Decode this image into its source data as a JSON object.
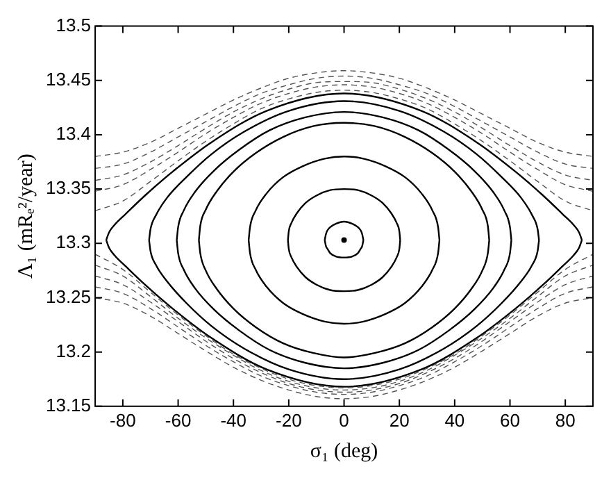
{
  "chart_data": {
    "type": "line",
    "xlabel": "σ₁ (deg)",
    "ylabel": "Λ₁ (mRₑ²/year)",
    "xlim": [
      -90,
      90
    ],
    "xticks": [
      -80,
      -60,
      -40,
      -20,
      0,
      20,
      40,
      60,
      80
    ],
    "ylim": [
      13.15,
      13.5
    ],
    "yticks": [
      13.15,
      13.2,
      13.25,
      13.3,
      13.35,
      13.4,
      13.45,
      13.5
    ],
    "grid": false,
    "legend": false,
    "marker": "none",
    "x": [
      -90,
      -80,
      -70,
      -60,
      -50,
      -40,
      -30,
      -20,
      -10,
      0,
      10,
      20,
      30,
      40,
      50,
      60,
      70,
      80,
      90
    ],
    "series": [
      {
        "color": "#555555",
        "line_style": "dashed",
        "values": [
          13.38,
          13.384,
          13.393,
          13.406,
          13.419,
          13.432,
          13.443,
          13.452,
          13.457,
          13.459,
          13.457,
          13.452,
          13.443,
          13.432,
          13.419,
          13.406,
          13.393,
          13.384,
          13.38
        ]
      },
      {
        "color": "#555555",
        "line_style": "dashed",
        "values": [
          13.369,
          13.373,
          13.384,
          13.398,
          13.412,
          13.426,
          13.438,
          13.446,
          13.452,
          13.454,
          13.452,
          13.446,
          13.438,
          13.426,
          13.412,
          13.398,
          13.384,
          13.373,
          13.369
        ]
      },
      {
        "color": "#555555",
        "line_style": "dashed",
        "values": [
          13.358,
          13.363,
          13.375,
          13.39,
          13.406,
          13.421,
          13.433,
          13.442,
          13.448,
          13.449,
          13.448,
          13.442,
          13.433,
          13.421,
          13.406,
          13.39,
          13.375,
          13.363,
          13.358
        ]
      },
      {
        "color": "#555555",
        "line_style": "dashed",
        "values": [
          13.348,
          13.354,
          13.368,
          13.384,
          13.401,
          13.416,
          13.429,
          13.438,
          13.444,
          13.446,
          13.444,
          13.438,
          13.429,
          13.416,
          13.401,
          13.384,
          13.368,
          13.354,
          13.348
        ]
      },
      {
        "color": "#555555",
        "line_style": "dashed",
        "values": [
          13.33,
          13.339,
          13.357,
          13.376,
          13.394,
          13.41,
          13.424,
          13.433,
          13.439,
          13.441,
          13.439,
          13.433,
          13.424,
          13.41,
          13.394,
          13.376,
          13.357,
          13.339,
          13.33
        ]
      },
      {
        "color": "#555555",
        "line_style": "dashed",
        "values": [
          13.25,
          13.245,
          13.233,
          13.217,
          13.201,
          13.186,
          13.174,
          13.165,
          13.159,
          13.157,
          13.159,
          13.165,
          13.174,
          13.186,
          13.201,
          13.217,
          13.233,
          13.245,
          13.25
        ]
      },
      {
        "color": "#555555",
        "line_style": "dashed",
        "values": [
          13.26,
          13.254,
          13.24,
          13.223,
          13.206,
          13.191,
          13.178,
          13.169,
          13.163,
          13.161,
          13.163,
          13.169,
          13.178,
          13.191,
          13.206,
          13.223,
          13.24,
          13.254,
          13.26
        ]
      },
      {
        "color": "#555555",
        "line_style": "dashed",
        "values": [
          13.27,
          13.262,
          13.246,
          13.228,
          13.21,
          13.194,
          13.181,
          13.171,
          13.165,
          13.163,
          13.165,
          13.171,
          13.181,
          13.194,
          13.21,
          13.228,
          13.246,
          13.262,
          13.27
        ]
      },
      {
        "color": "#555555",
        "line_style": "dashed",
        "values": [
          13.28,
          13.27,
          13.251,
          13.231,
          13.213,
          13.197,
          13.183,
          13.173,
          13.167,
          13.165,
          13.167,
          13.173,
          13.183,
          13.197,
          13.213,
          13.231,
          13.251,
          13.27,
          13.28
        ]
      },
      {
        "color": "#555555",
        "line_style": "dashed",
        "values": [
          13.29,
          13.276,
          13.255,
          13.234,
          13.215,
          13.198,
          13.185,
          13.175,
          13.169,
          13.167,
          13.169,
          13.175,
          13.185,
          13.198,
          13.215,
          13.234,
          13.255,
          13.276,
          13.29
        ]
      },
      {
        "color": "#000000",
        "line_style": "solid",
        "x": [
          -7,
          -6.5,
          -6,
          -5,
          -3,
          0,
          3,
          5,
          6,
          6.5,
          7,
          null,
          -7,
          -6.5,
          -6,
          -5,
          -3,
          0,
          3,
          5,
          6,
          6.5,
          7
        ],
        "values": [
          13.303,
          13.309,
          13.312,
          13.315,
          13.318,
          13.32,
          13.318,
          13.315,
          13.312,
          13.309,
          13.303,
          null,
          13.303,
          13.297,
          13.295,
          13.291,
          13.288,
          13.287,
          13.288,
          13.291,
          13.295,
          13.297,
          13.303
        ]
      },
      {
        "color": "#000000",
        "line_style": "solid",
        "x": [
          -20.3,
          -20,
          -19,
          -17,
          -14,
          -10,
          -5,
          0,
          5,
          10,
          14,
          17,
          19,
          20,
          20.3,
          null,
          -20.3,
          -20,
          -19,
          -17,
          -14,
          -10,
          -5,
          0,
          5,
          10,
          14,
          17,
          19,
          20,
          20.3
        ],
        "values": [
          13.303,
          13.311,
          13.319,
          13.328,
          13.337,
          13.344,
          13.349,
          13.35,
          13.349,
          13.344,
          13.337,
          13.328,
          13.319,
          13.311,
          13.303,
          null,
          13.303,
          13.295,
          13.287,
          13.278,
          13.269,
          13.262,
          13.257,
          13.256,
          13.257,
          13.262,
          13.269,
          13.278,
          13.287,
          13.295,
          13.303
        ]
      },
      {
        "color": "#000000",
        "line_style": "solid",
        "x": [
          -34.5,
          -34,
          -32,
          -28,
          -22,
          -15,
          -7,
          0,
          7,
          15,
          22,
          28,
          32,
          34,
          34.5,
          null,
          -34.5,
          -34,
          -32,
          -28,
          -22,
          -15,
          -7,
          0,
          7,
          15,
          22,
          28,
          32,
          34,
          34.5
        ],
        "values": [
          13.303,
          13.315,
          13.33,
          13.346,
          13.361,
          13.371,
          13.378,
          13.38,
          13.378,
          13.371,
          13.361,
          13.346,
          13.33,
          13.315,
          13.303,
          null,
          13.303,
          13.291,
          13.276,
          13.26,
          13.245,
          13.235,
          13.228,
          13.226,
          13.228,
          13.235,
          13.245,
          13.26,
          13.276,
          13.291,
          13.303
        ]
      },
      {
        "color": "#000000",
        "line_style": "solid",
        "x": [
          -52.5,
          -52,
          -50,
          -46,
          -40,
          -32,
          -22,
          -11,
          0,
          11,
          22,
          32,
          40,
          46,
          50,
          52,
          52.5,
          null,
          -52.5,
          -52,
          -50,
          -46,
          -40,
          -32,
          -22,
          -11,
          0,
          11,
          22,
          32,
          40,
          46,
          50,
          52,
          52.5
        ],
        "values": [
          13.303,
          13.316,
          13.331,
          13.348,
          13.366,
          13.383,
          13.398,
          13.408,
          13.411,
          13.408,
          13.398,
          13.383,
          13.366,
          13.348,
          13.331,
          13.316,
          13.303,
          null,
          13.303,
          13.291,
          13.275,
          13.258,
          13.24,
          13.223,
          13.208,
          13.199,
          13.195,
          13.199,
          13.208,
          13.223,
          13.24,
          13.258,
          13.275,
          13.291,
          13.303
        ]
      },
      {
        "color": "#000000",
        "line_style": "solid",
        "x": [
          -60.5,
          -60,
          -58,
          -54,
          -47,
          -38,
          -27,
          -14,
          0,
          14,
          27,
          38,
          47,
          54,
          58,
          60,
          60.5,
          null,
          -60.5,
          -60,
          -58,
          -54,
          -47,
          -38,
          -27,
          -14,
          0,
          14,
          27,
          38,
          47,
          54,
          58,
          60,
          60.5
        ],
        "values": [
          13.303,
          13.315,
          13.33,
          13.347,
          13.367,
          13.386,
          13.404,
          13.416,
          13.421,
          13.416,
          13.404,
          13.386,
          13.367,
          13.347,
          13.33,
          13.315,
          13.303,
          null,
          13.303,
          13.291,
          13.276,
          13.259,
          13.239,
          13.22,
          13.202,
          13.19,
          13.185,
          13.19,
          13.202,
          13.22,
          13.239,
          13.259,
          13.276,
          13.291,
          13.303
        ]
      },
      {
        "color": "#000000",
        "line_style": "solid",
        "x": [
          -70.5,
          -70,
          -68,
          -64,
          -57,
          -48,
          -36,
          -20,
          0,
          20,
          36,
          48,
          57,
          64,
          68,
          70,
          70.5,
          null,
          -70.5,
          -70,
          -68,
          -64,
          -57,
          -48,
          -36,
          -20,
          0,
          20,
          36,
          48,
          57,
          64,
          68,
          70,
          70.5
        ],
        "values": [
          13.303,
          13.313,
          13.326,
          13.342,
          13.361,
          13.382,
          13.403,
          13.422,
          13.431,
          13.422,
          13.403,
          13.382,
          13.361,
          13.342,
          13.326,
          13.313,
          13.303,
          null,
          13.303,
          13.293,
          13.28,
          13.265,
          13.245,
          13.224,
          13.203,
          13.184,
          13.175,
          13.184,
          13.203,
          13.224,
          13.245,
          13.265,
          13.28,
          13.293,
          13.303
        ]
      },
      {
        "color": "#000000",
        "line_style": "solid",
        "x": [
          -86,
          -85,
          -83,
          -79,
          -72,
          -62,
          -48,
          -28,
          0,
          28,
          48,
          62,
          72,
          79,
          83,
          85,
          86,
          null,
          -86,
          -85,
          -83,
          -79,
          -72,
          -62,
          -48,
          -28,
          0,
          28,
          48,
          62,
          72,
          79,
          83,
          85,
          86
        ],
        "values": [
          13.303,
          13.31,
          13.317,
          13.327,
          13.344,
          13.366,
          13.393,
          13.422,
          13.438,
          13.422,
          13.393,
          13.366,
          13.344,
          13.327,
          13.317,
          13.31,
          13.303,
          null,
          13.303,
          13.296,
          13.289,
          13.279,
          13.262,
          13.24,
          13.213,
          13.184,
          13.168,
          13.184,
          13.213,
          13.24,
          13.262,
          13.279,
          13.289,
          13.296,
          13.303
        ]
      },
      {
        "type": "scatter",
        "marker": "circle",
        "color": "#000000",
        "x": [
          0
        ],
        "values": [
          13.303
        ]
      }
    ]
  }
}
